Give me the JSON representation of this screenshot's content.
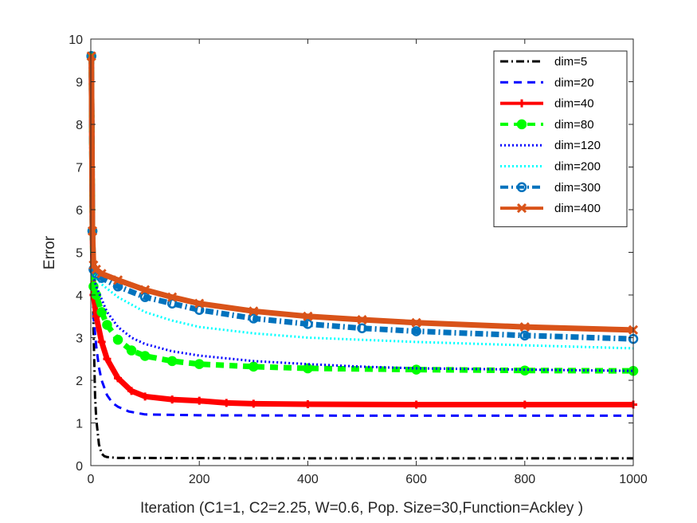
{
  "chart_data": {
    "type": "line",
    "xlabel": "Iteration  (C1=1, C2=2.25, W=0.6, Pop. Size=30,Function=Ackley )",
    "ylabel": "Error",
    "xlim": [
      0,
      1000
    ],
    "ylim": [
      0,
      10
    ],
    "xticks": [
      0,
      200,
      400,
      600,
      800,
      1000
    ],
    "yticks": [
      0,
      1,
      2,
      3,
      4,
      5,
      6,
      7,
      8,
      9,
      10
    ],
    "grid": false,
    "legend_position": "top-right",
    "series": [
      {
        "name": "dim=5",
        "color": "#000000",
        "style": "dashdot",
        "marker": "none",
        "points": [
          [
            1,
            9.6
          ],
          [
            3,
            5.5
          ],
          [
            5,
            3.2
          ],
          [
            8,
            1.6
          ],
          [
            10,
            1.1
          ],
          [
            15,
            0.5
          ],
          [
            20,
            0.28
          ],
          [
            25,
            0.22
          ],
          [
            30,
            0.2
          ],
          [
            50,
            0.18
          ],
          [
            100,
            0.18
          ],
          [
            300,
            0.17
          ],
          [
            600,
            0.17
          ],
          [
            1000,
            0.17
          ]
        ]
      },
      {
        "name": "dim=20",
        "color": "#0000ff",
        "style": "dashed",
        "marker": "none",
        "points": [
          [
            1,
            9.6
          ],
          [
            3,
            5.5
          ],
          [
            5,
            3.5
          ],
          [
            10,
            2.8
          ],
          [
            15,
            2.3
          ],
          [
            20,
            2.0
          ],
          [
            30,
            1.65
          ],
          [
            40,
            1.47
          ],
          [
            50,
            1.38
          ],
          [
            70,
            1.27
          ],
          [
            100,
            1.2
          ],
          [
            200,
            1.18
          ],
          [
            500,
            1.17
          ],
          [
            1000,
            1.17
          ]
        ]
      },
      {
        "name": "dim=40",
        "color": "#ff0000",
        "style": "solid",
        "marker": "plus",
        "points": [
          [
            1,
            9.6
          ],
          [
            3,
            5.5
          ],
          [
            5,
            4.0
          ],
          [
            10,
            3.5
          ],
          [
            20,
            2.9
          ],
          [
            30,
            2.5
          ],
          [
            50,
            2.05
          ],
          [
            75,
            1.75
          ],
          [
            100,
            1.62
          ],
          [
            150,
            1.55
          ],
          [
            200,
            1.52
          ],
          [
            250,
            1.47
          ],
          [
            300,
            1.45
          ],
          [
            400,
            1.44
          ],
          [
            600,
            1.43
          ],
          [
            800,
            1.43
          ],
          [
            1000,
            1.43
          ]
        ]
      },
      {
        "name": "dim=80",
        "color": "#00ff00",
        "style": "dashed",
        "marker": "circle",
        "points": [
          [
            1,
            9.6
          ],
          [
            3,
            5.5
          ],
          [
            5,
            4.2
          ],
          [
            10,
            4.0
          ],
          [
            20,
            3.6
          ],
          [
            30,
            3.3
          ],
          [
            50,
            2.95
          ],
          [
            75,
            2.7
          ],
          [
            100,
            2.57
          ],
          [
            150,
            2.45
          ],
          [
            200,
            2.38
          ],
          [
            300,
            2.32
          ],
          [
            400,
            2.28
          ],
          [
            600,
            2.25
          ],
          [
            800,
            2.23
          ],
          [
            1000,
            2.22
          ]
        ]
      },
      {
        "name": "dim=120",
        "color": "#0000ff",
        "style": "dotted",
        "marker": "none",
        "points": [
          [
            1,
            9.6
          ],
          [
            3,
            5.5
          ],
          [
            5,
            4.4
          ],
          [
            10,
            4.2
          ],
          [
            20,
            3.9
          ],
          [
            30,
            3.6
          ],
          [
            50,
            3.25
          ],
          [
            75,
            3.0
          ],
          [
            100,
            2.85
          ],
          [
            150,
            2.68
          ],
          [
            200,
            2.58
          ],
          [
            300,
            2.45
          ],
          [
            400,
            2.38
          ],
          [
            500,
            2.32
          ],
          [
            600,
            2.28
          ],
          [
            800,
            2.25
          ],
          [
            1000,
            2.22
          ]
        ]
      },
      {
        "name": "dim=200",
        "color": "#00ffff",
        "style": "dotted",
        "marker": "none",
        "points": [
          [
            1,
            9.6
          ],
          [
            3,
            5.5
          ],
          [
            5,
            4.5
          ],
          [
            10,
            4.4
          ],
          [
            20,
            4.25
          ],
          [
            50,
            3.95
          ],
          [
            100,
            3.6
          ],
          [
            150,
            3.4
          ],
          [
            200,
            3.25
          ],
          [
            300,
            3.1
          ],
          [
            400,
            3.0
          ],
          [
            600,
            2.9
          ],
          [
            800,
            2.82
          ],
          [
            1000,
            2.75
          ]
        ]
      },
      {
        "name": "dim=300",
        "color": "#0072bd",
        "style": "dashdot",
        "marker": "circle",
        "points": [
          [
            1,
            9.6
          ],
          [
            3,
            5.5
          ],
          [
            5,
            4.6
          ],
          [
            10,
            4.5
          ],
          [
            20,
            4.4
          ],
          [
            50,
            4.2
          ],
          [
            100,
            3.95
          ],
          [
            150,
            3.8
          ],
          [
            200,
            3.65
          ],
          [
            300,
            3.45
          ],
          [
            400,
            3.32
          ],
          [
            500,
            3.22
          ],
          [
            600,
            3.15
          ],
          [
            800,
            3.05
          ],
          [
            1000,
            2.97
          ]
        ]
      },
      {
        "name": "dim=400",
        "color": "#d95319",
        "style": "solid",
        "marker": "x",
        "points": [
          [
            1,
            9.6
          ],
          [
            3,
            5.5
          ],
          [
            5,
            4.7
          ],
          [
            10,
            4.6
          ],
          [
            20,
            4.5
          ],
          [
            50,
            4.35
          ],
          [
            100,
            4.12
          ],
          [
            150,
            3.95
          ],
          [
            200,
            3.8
          ],
          [
            300,
            3.62
          ],
          [
            400,
            3.5
          ],
          [
            500,
            3.42
          ],
          [
            600,
            3.35
          ],
          [
            800,
            3.25
          ],
          [
            1000,
            3.18
          ]
        ]
      }
    ]
  }
}
